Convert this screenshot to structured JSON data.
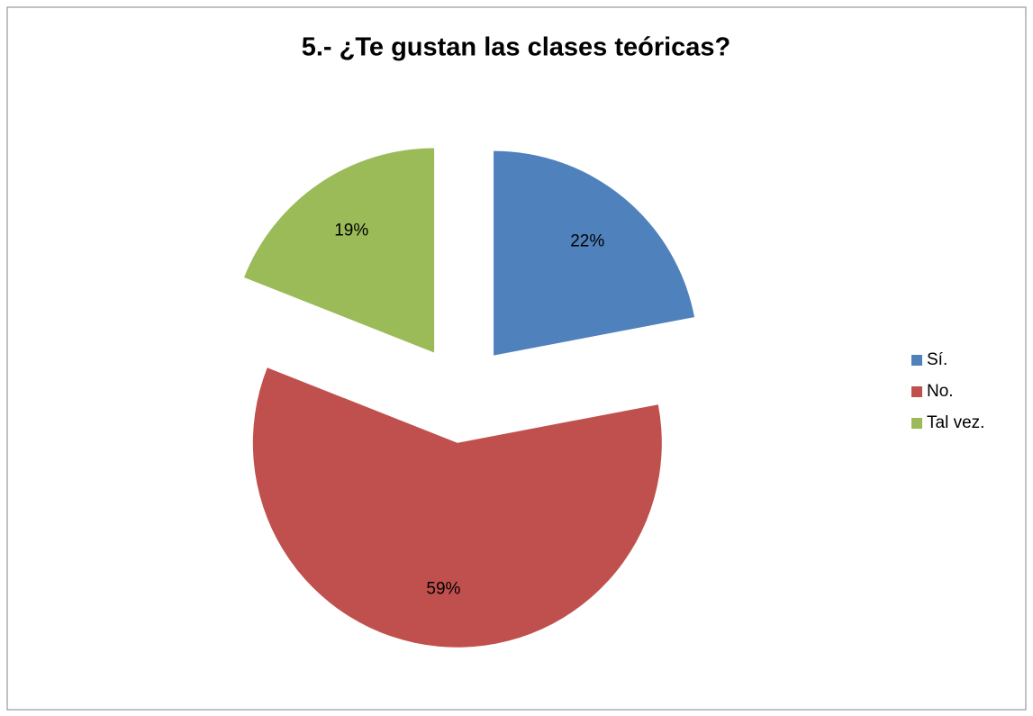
{
  "chart_data": {
    "type": "pie",
    "title": "5.- ¿Te gustan las clases teóricas?",
    "categories": [
      "Sí.",
      "No.",
      "Tal vez."
    ],
    "values": [
      22,
      59,
      19
    ],
    "value_labels": [
      "22%",
      "59%",
      "19%"
    ],
    "colors": [
      "#4f81bd",
      "#c0504d",
      "#9bbb59"
    ],
    "exploded": true,
    "legend": "right"
  }
}
